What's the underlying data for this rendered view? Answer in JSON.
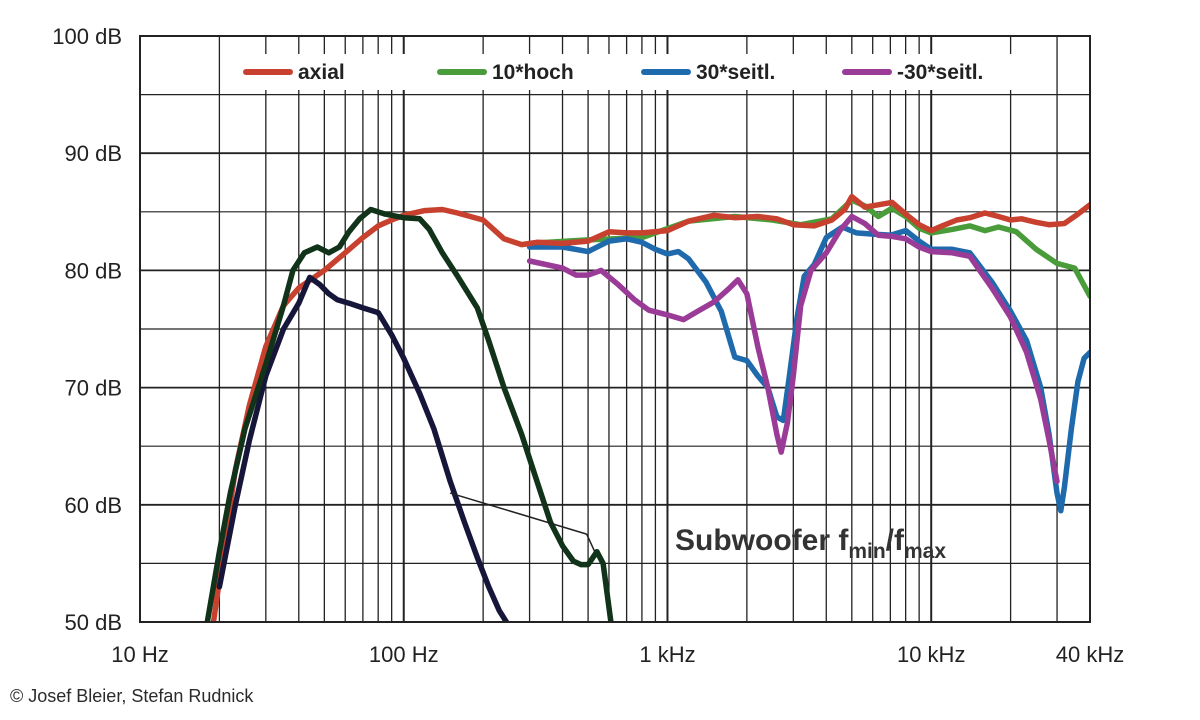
{
  "chart_data": {
    "type": "line",
    "xscale": "log",
    "xlim": [
      10,
      40000
    ],
    "ylim": [
      50,
      100
    ],
    "grid": true,
    "legend_position": "top",
    "y_ticks": [
      {
        "value": 50,
        "label": "50 dB"
      },
      {
        "value": 60,
        "label": "60 dB"
      },
      {
        "value": 70,
        "label": "70 dB"
      },
      {
        "value": 80,
        "label": "80 dB"
      },
      {
        "value": 90,
        "label": "90 dB"
      },
      {
        "value": 100,
        "label": "100 dB"
      }
    ],
    "x_ticks": [
      {
        "value": 10,
        "label": "10 Hz"
      },
      {
        "value": 100,
        "label": "100 Hz"
      },
      {
        "value": 1000,
        "label": "1 kHz"
      },
      {
        "value": 10000,
        "label": "10 kHz"
      },
      {
        "value": 40000,
        "label": "40 kHz"
      }
    ],
    "series": [
      {
        "name": "10*hoch",
        "color": "#4a9c3a",
        "in_legend": true,
        "points": [
          [
            300,
            82.3
          ],
          [
            500,
            82.6
          ],
          [
            800,
            82.8
          ],
          [
            1200,
            84.2
          ],
          [
            1800,
            84.6
          ],
          [
            2500,
            84.3
          ],
          [
            3200,
            83.9
          ],
          [
            4200,
            84.4
          ],
          [
            5000,
            86.0
          ],
          [
            5600,
            85.5
          ],
          [
            6300,
            84.6
          ],
          [
            7100,
            85.3
          ],
          [
            8000,
            84.6
          ],
          [
            9000,
            83.6
          ],
          [
            10000,
            83.2
          ],
          [
            12000,
            83.5
          ],
          [
            14000,
            83.8
          ],
          [
            16000,
            83.4
          ],
          [
            18000,
            83.7
          ],
          [
            21000,
            83.3
          ],
          [
            25000,
            81.8
          ],
          [
            30000,
            80.6
          ],
          [
            35000,
            80.2
          ],
          [
            40000,
            77.8
          ]
        ]
      },
      {
        "name": "30*seitl.",
        "color": "#1f6aad",
        "in_legend": true,
        "points": [
          [
            300,
            82.0
          ],
          [
            400,
            82.0
          ],
          [
            500,
            81.6
          ],
          [
            600,
            82.5
          ],
          [
            700,
            82.7
          ],
          [
            800,
            82.4
          ],
          [
            900,
            81.8
          ],
          [
            1000,
            81.4
          ],
          [
            1100,
            81.6
          ],
          [
            1200,
            81.0
          ],
          [
            1400,
            79.0
          ],
          [
            1600,
            76.5
          ],
          [
            1800,
            72.6
          ],
          [
            2000,
            72.3
          ],
          [
            2200,
            71.0
          ],
          [
            2400,
            70.0
          ],
          [
            2600,
            67.5
          ],
          [
            2750,
            67.2
          ],
          [
            2900,
            71.0
          ],
          [
            3100,
            76.0
          ],
          [
            3300,
            79.5
          ],
          [
            3600,
            80.5
          ],
          [
            4000,
            82.8
          ],
          [
            4600,
            83.7
          ],
          [
            5200,
            83.2
          ],
          [
            6000,
            83.1
          ],
          [
            7000,
            83.0
          ],
          [
            8000,
            83.4
          ],
          [
            9000,
            82.5
          ],
          [
            10000,
            81.8
          ],
          [
            12000,
            81.8
          ],
          [
            14000,
            81.5
          ],
          [
            17000,
            79.0
          ],
          [
            20000,
            76.5
          ],
          [
            23000,
            74.0
          ],
          [
            26000,
            70.0
          ],
          [
            28000,
            66.0
          ],
          [
            30000,
            61.0
          ],
          [
            31000,
            59.5
          ],
          [
            32000,
            61.5
          ],
          [
            34000,
            66.5
          ],
          [
            36000,
            70.5
          ],
          [
            38000,
            72.5
          ],
          [
            40000,
            73.0
          ]
        ]
      },
      {
        "name": "-30*seitl.",
        "color": "#9a3c97",
        "in_legend": true,
        "points": [
          [
            300,
            80.8
          ],
          [
            400,
            80.2
          ],
          [
            450,
            79.6
          ],
          [
            500,
            79.6
          ],
          [
            560,
            80.0
          ],
          [
            650,
            78.8
          ],
          [
            750,
            77.5
          ],
          [
            850,
            76.6
          ],
          [
            1000,
            76.2
          ],
          [
            1150,
            75.8
          ],
          [
            1300,
            76.5
          ],
          [
            1500,
            77.3
          ],
          [
            1700,
            78.4
          ],
          [
            1850,
            79.2
          ],
          [
            2000,
            78.0
          ],
          [
            2200,
            73.5
          ],
          [
            2400,
            70.0
          ],
          [
            2600,
            66.0
          ],
          [
            2700,
            64.5
          ],
          [
            2850,
            67.0
          ],
          [
            3000,
            71.0
          ],
          [
            3200,
            77.0
          ],
          [
            3500,
            80.0
          ],
          [
            4000,
            81.5
          ],
          [
            4500,
            83.4
          ],
          [
            5000,
            84.6
          ],
          [
            5600,
            84.0
          ],
          [
            6300,
            83.0
          ],
          [
            7100,
            82.9
          ],
          [
            8000,
            82.7
          ],
          [
            9000,
            82.0
          ],
          [
            10000,
            81.6
          ],
          [
            12000,
            81.5
          ],
          [
            14000,
            81.2
          ],
          [
            17000,
            78.5
          ],
          [
            20000,
            76.0
          ],
          [
            23000,
            73.0
          ],
          [
            26000,
            69.0
          ],
          [
            28000,
            65.5
          ],
          [
            30000,
            62.0
          ]
        ]
      },
      {
        "name": "axial",
        "color": "#c8412f",
        "in_legend": true,
        "points": [
          [
            19,
            50.0
          ],
          [
            21,
            57.0
          ],
          [
            23,
            63.0
          ],
          [
            26,
            68.5
          ],
          [
            30,
            73.5
          ],
          [
            35,
            77.0
          ],
          [
            40,
            78.5
          ],
          [
            50,
            80.0
          ],
          [
            60,
            81.5
          ],
          [
            70,
            82.8
          ],
          [
            80,
            83.8
          ],
          [
            90,
            84.3
          ],
          [
            100,
            84.7
          ],
          [
            120,
            85.1
          ],
          [
            140,
            85.2
          ],
          [
            160,
            84.9
          ],
          [
            200,
            84.3
          ],
          [
            240,
            82.7
          ],
          [
            280,
            82.2
          ],
          [
            320,
            82.4
          ],
          [
            400,
            82.3
          ],
          [
            500,
            82.5
          ],
          [
            600,
            83.3
          ],
          [
            700,
            83.2
          ],
          [
            800,
            83.2
          ],
          [
            1000,
            83.4
          ],
          [
            1200,
            84.2
          ],
          [
            1500,
            84.7
          ],
          [
            1800,
            84.5
          ],
          [
            2200,
            84.6
          ],
          [
            2600,
            84.4
          ],
          [
            3000,
            83.9
          ],
          [
            3600,
            83.8
          ],
          [
            4200,
            84.3
          ],
          [
            4700,
            85.2
          ],
          [
            5000,
            86.3
          ],
          [
            5600,
            85.4
          ],
          [
            6300,
            85.6
          ],
          [
            7100,
            85.8
          ],
          [
            8000,
            84.8
          ],
          [
            9000,
            83.9
          ],
          [
            10000,
            83.4
          ],
          [
            11000,
            83.8
          ],
          [
            12500,
            84.3
          ],
          [
            14000,
            84.5
          ],
          [
            16000,
            84.9
          ],
          [
            18000,
            84.6
          ],
          [
            20000,
            84.3
          ],
          [
            22000,
            84.4
          ],
          [
            25000,
            84.1
          ],
          [
            28000,
            83.9
          ],
          [
            32000,
            84.0
          ],
          [
            36000,
            84.8
          ],
          [
            40000,
            85.6
          ]
        ]
      },
      {
        "name": "Subwoofer fmin",
        "color": "#16163a",
        "in_legend": false,
        "points": [
          [
            20,
            53.0
          ],
          [
            23,
            60.0
          ],
          [
            26,
            65.5
          ],
          [
            30,
            71.0
          ],
          [
            35,
            75.0
          ],
          [
            40,
            77.2
          ],
          [
            44,
            79.4
          ],
          [
            48,
            78.8
          ],
          [
            52,
            78.0
          ],
          [
            56,
            77.5
          ],
          [
            62,
            77.2
          ],
          [
            70,
            76.8
          ],
          [
            80,
            76.4
          ],
          [
            90,
            74.5
          ],
          [
            100,
            72.5
          ],
          [
            115,
            69.5
          ],
          [
            130,
            66.5
          ],
          [
            150,
            62.0
          ],
          [
            170,
            58.5
          ],
          [
            190,
            55.5
          ],
          [
            210,
            53.0
          ],
          [
            230,
            51.0
          ],
          [
            245,
            50.0
          ]
        ]
      },
      {
        "name": "Subwoofer fmax",
        "color": "#103319",
        "in_legend": false,
        "points": [
          [
            18,
            50.0
          ],
          [
            20,
            56.0
          ],
          [
            22,
            61.0
          ],
          [
            25,
            66.5
          ],
          [
            30,
            72.0
          ],
          [
            35,
            77.0
          ],
          [
            38,
            80.0
          ],
          [
            42,
            81.5
          ],
          [
            47,
            82.0
          ],
          [
            52,
            81.5
          ],
          [
            57,
            82.0
          ],
          [
            62,
            83.3
          ],
          [
            68,
            84.4
          ],
          [
            75,
            85.2
          ],
          [
            85,
            84.8
          ],
          [
            100,
            84.5
          ],
          [
            115,
            84.4
          ],
          [
            125,
            83.5
          ],
          [
            140,
            81.5
          ],
          [
            160,
            79.5
          ],
          [
            190,
            76.8
          ],
          [
            210,
            74.0
          ],
          [
            240,
            70.0
          ],
          [
            280,
            66.0
          ],
          [
            320,
            62.0
          ],
          [
            360,
            58.5
          ],
          [
            400,
            56.5
          ],
          [
            440,
            55.2
          ],
          [
            470,
            54.9
          ],
          [
            500,
            54.9
          ],
          [
            540,
            56.0
          ],
          [
            570,
            55.0
          ],
          [
            610,
            50.0
          ]
        ]
      }
    ],
    "legend": [
      {
        "label": "axial",
        "color": "#c8412f"
      },
      {
        "label": "10*hoch",
        "color": "#4a9c3a"
      },
      {
        "label": "30*seitl.",
        "color": "#1f6aad"
      },
      {
        "label": "-30*seitl.",
        "color": "#9a3c97"
      }
    ],
    "annotation": {
      "text_main": "Subwoofer f",
      "sub1": "min",
      "slash": "/f",
      "sub2": "max",
      "pointers": [
        [
          150,
          61.0
        ],
        [
          530,
          56.0
        ]
      ],
      "anchor": [
        700,
        57.5
      ]
    }
  },
  "footer": {
    "copyright": "© Josef Bleier, Stefan Rudnick"
  }
}
